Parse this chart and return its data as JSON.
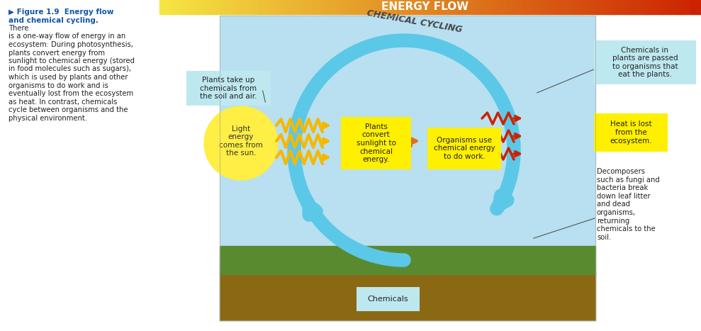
{
  "title": "ENERGY FLOW",
  "figure_label": "Figure 1.9",
  "figure_label_bold": "Energy flow and chemical cycling.",
  "figure_caption": "There\nis a one-way flow of energy in an\necosystem: During photosynthesis,\nplants convert energy from\nsunlight to chemical energy (stored\nin food molecules such as sugars),\nwhich is used by plants and other\norganisms to do work and is\neventually lost from the ecosystem\nas heat. In contrast, chemicals\ncycle between organisms and the\nphysical environment.",
  "energy_flow_gradient_left": "#F5E642",
  "energy_flow_gradient_right": "#CC2200",
  "chemical_cycling_label": "CHEMICAL CYCLING",
  "chemical_cycling_color": "#5BC8E8",
  "yellow_box_color": "#FFEF00",
  "light_blue_box_color": "#BEE8F0",
  "background_image_color": "#C8E8F0",
  "sun_color": "#FFEE44",
  "sun_text": "Light\nenergy\ncomes from\nthe sun.",
  "box1_text": "Plants\nconvert\nsunlight to\nchemical\nenergy.",
  "box2_text": "Organisms use\nchemical energy\nto do work.",
  "box3_text": "Plants take up\nchemicals from\nthe soil and air.",
  "box4_text": "Chemicals",
  "box5_text": "Chemicals in\nplants are passed\nto organisms that\neat the plants.",
  "box6_text": "Heat is lost\nfrom the\necosystem.",
  "box7_text": "Decomposers\nsuch as fungi and\nbacteria break\ndown leaf litter\nand dead\norganisms,\nreturning\nchemicals to the\nsoil.",
  "arrow_yellow_color": "#F5B800",
  "arrow_red_color": "#CC2200",
  "arrow_orange_color": "#E07020",
  "text_color_dark": "#333333",
  "fig_width": 9.89,
  "fig_height": 4.67
}
